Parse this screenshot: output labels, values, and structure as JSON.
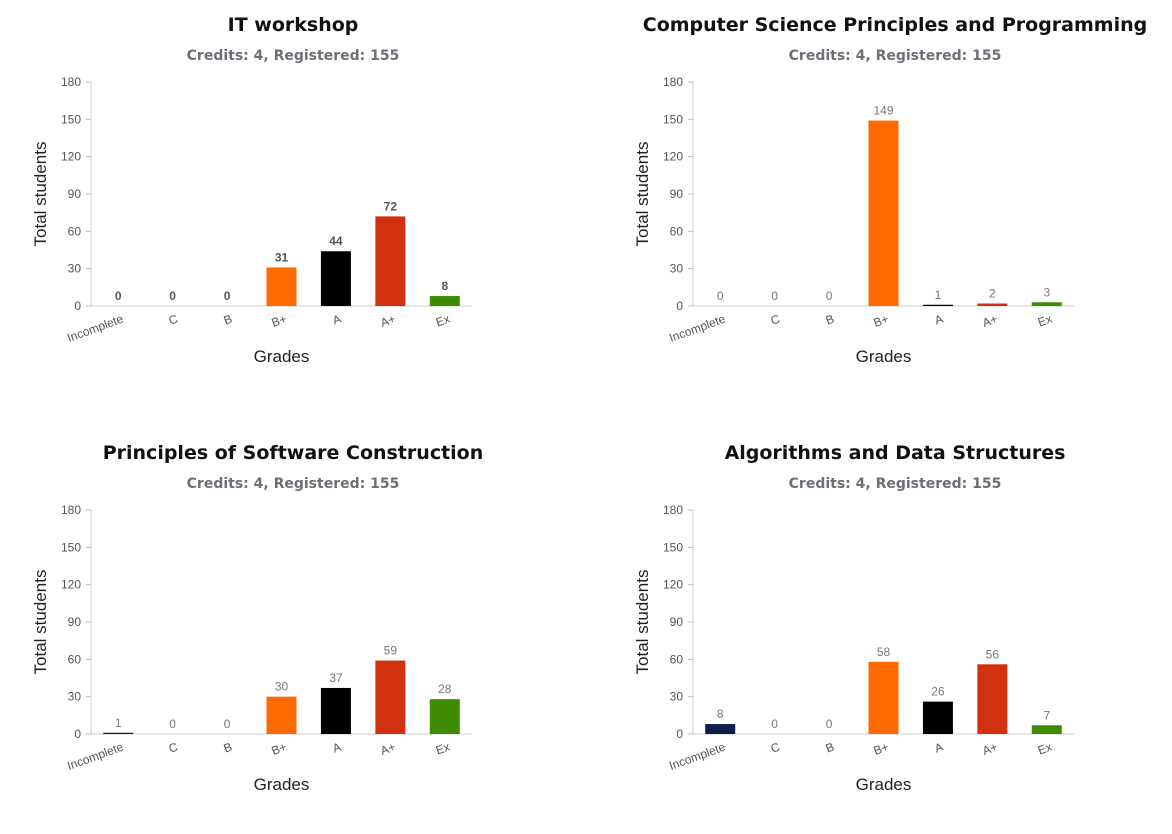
{
  "chart_data": [
    {
      "type": "bar",
      "title": "IT workshop",
      "subtitle": "Credits: 4, Registered: 155",
      "xlabel": "Grades",
      "ylabel": "Total students",
      "categories": [
        "Incomplete",
        "C",
        "B",
        "B+",
        "A",
        "A+",
        "Ex"
      ],
      "values": [
        0,
        0,
        0,
        31,
        44,
        72,
        8
      ],
      "ylim": [
        0,
        180
      ],
      "yticks": [
        0,
        30,
        60,
        90,
        120,
        150,
        180
      ],
      "label_style": "bold",
      "grid": false
    },
    {
      "type": "bar",
      "title": "Computer Science Principles and Programming",
      "subtitle": "Credits: 4, Registered: 155",
      "xlabel": "Grades",
      "ylabel": "Total students",
      "categories": [
        "Incomplete",
        "C",
        "B",
        "B+",
        "A",
        "A+",
        "Ex"
      ],
      "values": [
        0,
        0,
        0,
        149,
        1,
        2,
        3
      ],
      "ylim": [
        0,
        180
      ],
      "yticks": [
        0,
        30,
        60,
        90,
        120,
        150,
        180
      ],
      "label_style": "normal",
      "grid": false
    },
    {
      "type": "bar",
      "title": "Principles of Software Construction",
      "subtitle": "Credits: 4, Registered: 155",
      "xlabel": "Grades",
      "ylabel": "Total students",
      "categories": [
        "Incomplete",
        "C",
        "B",
        "B+",
        "A",
        "A+",
        "Ex"
      ],
      "values": [
        1,
        0,
        0,
        30,
        37,
        59,
        28
      ],
      "ylim": [
        0,
        180
      ],
      "yticks": [
        0,
        30,
        60,
        90,
        120,
        150,
        180
      ],
      "label_style": "normal",
      "grid": false
    },
    {
      "type": "bar",
      "title": "Algorithms and Data Structures",
      "subtitle": "Credits: 4, Registered: 155",
      "xlabel": "Grades",
      "ylabel": "Total students",
      "categories": [
        "Incomplete",
        "C",
        "B",
        "B+",
        "A",
        "A+",
        "Ex"
      ],
      "values": [
        8,
        0,
        0,
        58,
        26,
        56,
        7
      ],
      "ylim": [
        0,
        180
      ],
      "yticks": [
        0,
        30,
        60,
        90,
        120,
        150,
        180
      ],
      "label_style": "normal",
      "grid": false
    }
  ],
  "colors": {
    "Incomplete": "#0f1f4b",
    "C": "#7a3b3b",
    "B": "#2f4f8f",
    "B+": "#ff6a00",
    "A": "#000000",
    "A+": "#d2310f",
    "Ex": "#3d8c00"
  }
}
